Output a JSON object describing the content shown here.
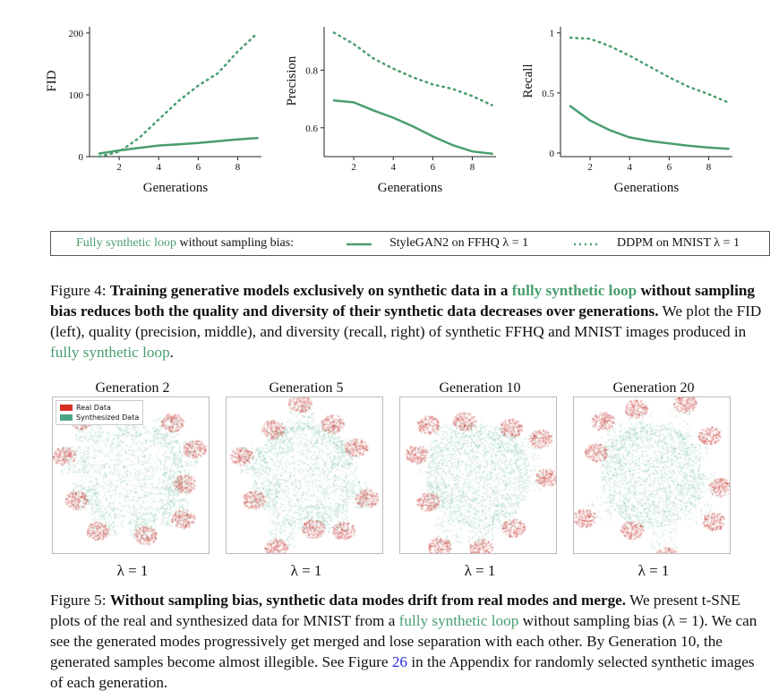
{
  "figure4": {
    "charts": {
      "fid": {
        "ylabel": "FID",
        "xlabel": "Generations",
        "xticks": [
          "2",
          "4",
          "6",
          "8"
        ],
        "yticks": [
          "0",
          "100",
          "200"
        ]
      },
      "precision": {
        "ylabel": "Precision",
        "xlabel": "Generations",
        "xticks": [
          "2",
          "4",
          "6",
          "8"
        ],
        "yticks": [
          "0.6",
          "0.8"
        ]
      },
      "recall": {
        "ylabel": "Recall",
        "xlabel": "Generations",
        "xticks": [
          "2",
          "4",
          "6",
          "8"
        ],
        "yticks": [
          "0",
          "0.5",
          "1"
        ]
      }
    },
    "legend": {
      "prefix_green": "Fully synthetic loop",
      "prefix_rest": "without sampling bias:",
      "series1": "StyleGAN2 on FFHQ λ = 1",
      "series2": "DDPM on MNIST λ = 1"
    },
    "caption": {
      "label": "Figure 4:",
      "bold1": "Training generative models exclusively on synthetic data in a",
      "bold_green": "fully synthetic loop",
      "bold2": "without sampling bias reduces both the quality and diversity of their synthetic data decreases over generations.",
      "rest1": "We plot the FID (left), quality (precision, middle), and diversity (recall, right) of synthetic FFHQ and MNIST images produced in",
      "rest_green": "fully synthetic loop",
      "rest2": "."
    }
  },
  "chart_data": [
    {
      "type": "line",
      "xlabel": "Generations",
      "ylabel": "FID",
      "ylim": [
        0,
        210
      ],
      "xlim": [
        0.5,
        9.2
      ],
      "x": [
        1,
        2,
        3,
        4,
        5,
        6,
        7,
        8,
        9
      ],
      "series": [
        {
          "name": "StyleGAN2 on FFHQ λ = 1",
          "values": [
            5,
            10,
            14,
            18,
            20,
            22,
            25,
            28,
            30
          ],
          "style": "solid"
        },
        {
          "name": "DDPM on MNIST λ = 1",
          "values": [
            0,
            8,
            30,
            60,
            90,
            115,
            135,
            170,
            200
          ],
          "style": "dotted"
        }
      ]
    },
    {
      "type": "line",
      "xlabel": "Generations",
      "ylabel": "Precision",
      "ylim": [
        0.5,
        0.95
      ],
      "xlim": [
        0.5,
        9.2
      ],
      "x": [
        1,
        2,
        3,
        4,
        5,
        6,
        7,
        8,
        9
      ],
      "series": [
        {
          "name": "StyleGAN2 on FFHQ λ = 1",
          "values": [
            0.695,
            0.688,
            0.66,
            0.635,
            0.605,
            0.57,
            0.54,
            0.518,
            0.51
          ],
          "style": "solid"
        },
        {
          "name": "DDPM on MNIST λ = 1",
          "values": [
            0.93,
            0.89,
            0.84,
            0.805,
            0.775,
            0.75,
            0.735,
            0.71,
            0.678
          ],
          "style": "dotted"
        }
      ]
    },
    {
      "type": "line",
      "xlabel": "Generations",
      "ylabel": "Recall",
      "ylim": [
        -0.03,
        1.05
      ],
      "xlim": [
        0.5,
        9.2
      ],
      "x": [
        1,
        2,
        3,
        4,
        5,
        6,
        7,
        8,
        9
      ],
      "series": [
        {
          "name": "StyleGAN2 on FFHQ λ = 1",
          "values": [
            0.39,
            0.27,
            0.19,
            0.13,
            0.1,
            0.08,
            0.06,
            0.045,
            0.035
          ],
          "style": "solid"
        },
        {
          "name": "DDPM on MNIST λ = 1",
          "values": [
            0.96,
            0.95,
            0.89,
            0.81,
            0.72,
            0.63,
            0.55,
            0.49,
            0.42
          ],
          "style": "dotted"
        }
      ]
    }
  ],
  "figure5": {
    "panels": [
      {
        "title": "Generation 2",
        "lambda": "λ = 1"
      },
      {
        "title": "Generation 5",
        "lambda": "λ = 1"
      },
      {
        "title": "Generation 10",
        "lambda": "λ = 1"
      },
      {
        "title": "Generation 20",
        "lambda": "λ = 1"
      }
    ],
    "tsne_legend": {
      "real": "Real Data",
      "synth": "Synthesized Data"
    },
    "colors": {
      "real": "#c0392b",
      "synth": "#6bb89a",
      "green_text": "#4a9e6e"
    },
    "caption": {
      "label": "Figure 5:",
      "bold": "Without sampling bias, synthetic data modes drift from real modes and merge.",
      "rest1": "We present t-SNE plots of the real and synthesized data for MNIST from a",
      "rest_green": "fully synthetic loop",
      "rest2": "without sampling bias (λ = 1). We can see the generated modes progressively get merged and lose separation with each other. By Generation 10, the generated samples become almost illegible. See Figure",
      "link": "26",
      "rest3": "in the Appendix for randomly selected synthetic images of each generation."
    }
  }
}
